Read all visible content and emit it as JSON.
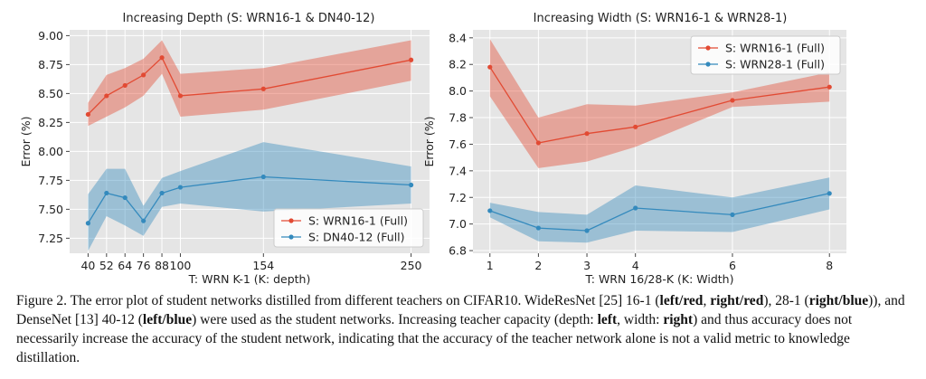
{
  "chart_data": [
    {
      "type": "line",
      "title": "Increasing Depth (S: WRN16-1 & DN40-12)",
      "xlabel": "T: WRN K-1 (K: depth)",
      "ylabel": "Error (%)",
      "xlim": [
        28,
        262
      ],
      "ylim": [
        7.12,
        9.05
      ],
      "xticks": [
        40,
        52,
        64,
        76,
        88,
        100,
        154,
        250
      ],
      "xticklabels": [
        "40",
        "52",
        "64",
        "76",
        "88",
        "100",
        "154",
        "250"
      ],
      "yticks": [
        7.25,
        7.5,
        7.75,
        8.0,
        8.25,
        8.5,
        8.75,
        9.0
      ],
      "yticklabels": [
        "7.25",
        "7.50",
        "7.75",
        "8.00",
        "8.25",
        "8.50",
        "8.75",
        "9.00"
      ],
      "grid": true,
      "legend_position": "lower-right",
      "x": [
        40,
        52,
        64,
        76,
        88,
        100,
        154,
        250
      ],
      "series": [
        {
          "name": "S: WRN16-1 (Full)",
          "color": "#e24a33",
          "values": [
            8.32,
            8.48,
            8.57,
            8.66,
            8.81,
            8.48,
            8.54,
            8.79
          ],
          "lower": [
            8.22,
            8.3,
            8.38,
            8.48,
            8.67,
            8.3,
            8.36,
            8.61
          ],
          "upper": [
            8.42,
            8.66,
            8.72,
            8.8,
            8.96,
            8.67,
            8.72,
            8.96
          ]
        },
        {
          "name": "S: DN40-12 (Full)",
          "color": "#348abd",
          "values": [
            7.38,
            7.64,
            7.6,
            7.4,
            7.64,
            7.69,
            7.78,
            7.71
          ],
          "lower": [
            7.14,
            7.44,
            7.36,
            7.27,
            7.52,
            7.55,
            7.48,
            7.55
          ],
          "upper": [
            7.63,
            7.85,
            7.85,
            7.53,
            7.77,
            7.83,
            8.08,
            7.87
          ]
        }
      ]
    },
    {
      "type": "line",
      "title": "Increasing Width (S: WRN16-1 & WRN28-1)",
      "xlabel": "T: WRN 16/28-K (K: Width)",
      "ylabel": "Error (%)",
      "xlim": [
        0.65,
        8.35
      ],
      "ylim": [
        6.78,
        8.46
      ],
      "xticks": [
        1,
        2,
        3,
        4,
        6,
        8
      ],
      "xticklabels": [
        "1",
        "2",
        "3",
        "4",
        "6",
        "8"
      ],
      "yticks": [
        6.8,
        7.0,
        7.2,
        7.4,
        7.6,
        7.8,
        8.0,
        8.2,
        8.4
      ],
      "yticklabels": [
        "6.8",
        "7.0",
        "7.2",
        "7.4",
        "7.6",
        "7.8",
        "8.0",
        "8.2",
        "8.4"
      ],
      "grid": true,
      "legend_position": "upper-right",
      "x": [
        1,
        2,
        3,
        4,
        6,
        8
      ],
      "series": [
        {
          "name": "S: WRN16-1 (Full)",
          "color": "#e24a33",
          "values": [
            8.18,
            7.61,
            7.68,
            7.73,
            7.93,
            8.03
          ],
          "lower": [
            7.96,
            7.42,
            7.47,
            7.58,
            7.88,
            7.92
          ],
          "upper": [
            8.39,
            7.8,
            7.9,
            7.89,
            7.99,
            8.14
          ]
        },
        {
          "name": "S: WRN28-1 (Full)",
          "color": "#348abd",
          "values": [
            7.1,
            6.97,
            6.95,
            7.12,
            7.07,
            7.23
          ],
          "lower": [
            7.05,
            6.87,
            6.86,
            6.95,
            6.94,
            7.11
          ],
          "upper": [
            7.16,
            7.09,
            7.07,
            7.29,
            7.2,
            7.35
          ]
        }
      ]
    }
  ],
  "caption": {
    "parts": [
      {
        "text": "Figure 2. The error plot of student networks distilled from different teachers on CIFAR10. WideResNet [25] 16-1 (",
        "bold": false
      },
      {
        "text": "left/red",
        "bold": true
      },
      {
        "text": ", ",
        "bold": false
      },
      {
        "text": "right/red",
        "bold": true
      },
      {
        "text": "), 28-1 (",
        "bold": false
      },
      {
        "text": "right/blue",
        "bold": true
      },
      {
        "text": ")), and DenseNet [13] 40-12 (",
        "bold": false
      },
      {
        "text": "left/blue",
        "bold": true
      },
      {
        "text": ") were used as the student networks. Increasing teacher capacity (depth: ",
        "bold": false
      },
      {
        "text": "left",
        "bold": true
      },
      {
        "text": ", width: ",
        "bold": false
      },
      {
        "text": "right",
        "bold": true
      },
      {
        "text": ") and thus accuracy does not necessarily increase the accuracy of the student network, indicating that the accuracy of the teacher network alone is not a valid metric to knowledge distillation.",
        "bold": false
      }
    ]
  }
}
